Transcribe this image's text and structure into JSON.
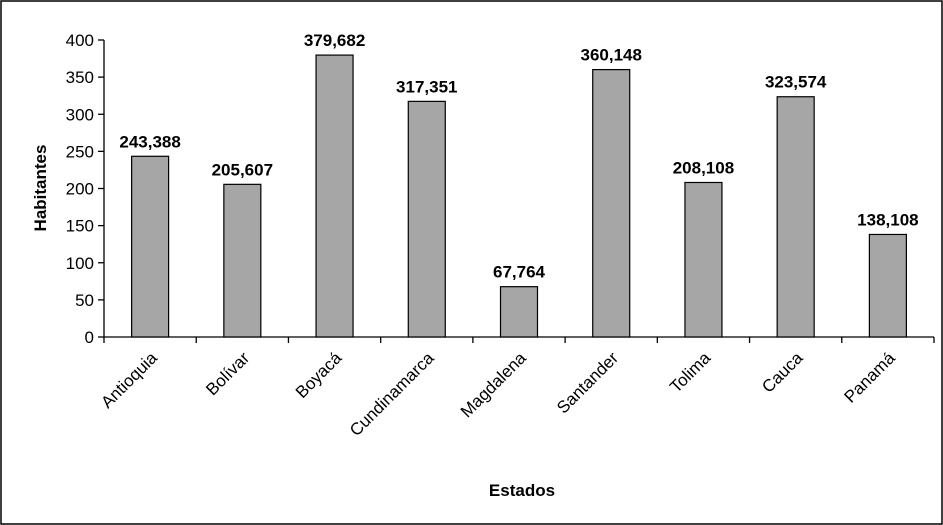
{
  "chart_data": {
    "type": "bar",
    "title": "",
    "xlabel": "Estados",
    "ylabel": "Habitantes",
    "ylim": [
      0,
      400
    ],
    "yticks": [
      0,
      50,
      100,
      150,
      200,
      250,
      300,
      350,
      400
    ],
    "ytick_labels": [
      "0",
      "50",
      "100",
      "150",
      "200",
      "250",
      "300",
      "350",
      "400"
    ],
    "grid": false,
    "legend": "none",
    "categories": [
      "Antioquia",
      "Bolívar",
      "Boyacá",
      "Cundinamarca",
      "Magdalena",
      "Santander",
      "Tolima",
      "Cauca",
      "Panamá"
    ],
    "values": [
      243.388,
      205.607,
      379.682,
      317.351,
      67.764,
      360.148,
      208.108,
      323.574,
      138.108
    ],
    "data_labels": [
      "243,388",
      "205,607",
      "379,682",
      "317,351",
      "67,764",
      "360,148",
      "208,108",
      "323,574",
      "138,108"
    ],
    "bar_color": "#a6a6a6",
    "bar_edge_color": "#000000"
  }
}
